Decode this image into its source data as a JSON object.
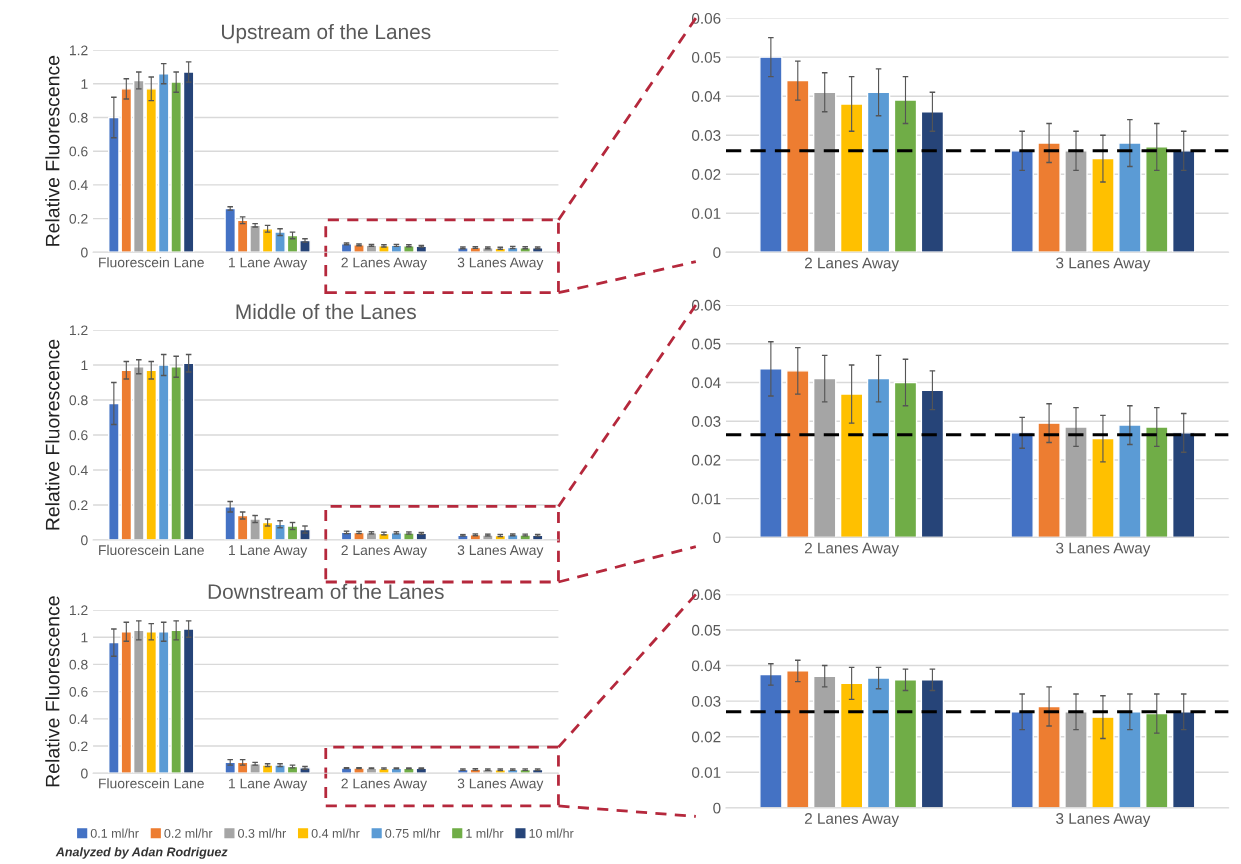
{
  "chart_data": [
    {
      "type": "bar",
      "title": "Upstream of the Lanes",
      "ylabel": "Relative Fluorescence",
      "categories": [
        "Fluorescein Lane",
        "1 Lane Away",
        "2 Lanes Away",
        "3 Lanes Away"
      ],
      "ylim": [
        0,
        1.2
      ],
      "yticks": [
        0,
        0.2,
        0.4,
        0.6,
        0.8,
        1,
        1.2
      ],
      "grid": "y",
      "series": [
        {
          "color": "#4472c4",
          "values": [
            0.8,
            0.26,
            0.05,
            0.026
          ],
          "errors": [
            0.12,
            0.01,
            0.005,
            0.005
          ]
        },
        {
          "color": "#ed7d31",
          "values": [
            0.97,
            0.19,
            0.044,
            0.028
          ],
          "errors": [
            0.06,
            0.02,
            0.005,
            0.005
          ]
        },
        {
          "color": "#a5a5a5",
          "values": [
            1.02,
            0.16,
            0.041,
            0.026
          ],
          "errors": [
            0.05,
            0.01,
            0.005,
            0.005
          ]
        },
        {
          "color": "#ffc000",
          "values": [
            0.97,
            0.14,
            0.038,
            0.024
          ],
          "errors": [
            0.07,
            0.02,
            0.007,
            0.006
          ]
        },
        {
          "color": "#5b9bd5",
          "values": [
            1.06,
            0.12,
            0.041,
            0.028
          ],
          "errors": [
            0.06,
            0.02,
            0.006,
            0.006
          ]
        },
        {
          "color": "#70ad47",
          "values": [
            1.01,
            0.1,
            0.039,
            0.027
          ],
          "errors": [
            0.06,
            0.02,
            0.006,
            0.006
          ]
        },
        {
          "color": "#264478",
          "values": [
            1.07,
            0.07,
            0.036,
            0.026
          ],
          "errors": [
            0.06,
            0.01,
            0.005,
            0.005
          ]
        }
      ]
    },
    {
      "type": "bar",
      "title": "Middle of the Lanes",
      "ylabel": "Relative Fluorescence",
      "categories": [
        "Fluorescein Lane",
        "1 Lane Away",
        "2 Lanes Away",
        "3 Lanes Away"
      ],
      "ylim": [
        0,
        1.2
      ],
      "yticks": [
        0,
        0.2,
        0.4,
        0.6,
        0.8,
        1,
        1.2
      ],
      "grid": "y",
      "series": [
        {
          "color": "#4472c4",
          "values": [
            0.78,
            0.19,
            0.0435,
            0.027
          ],
          "errors": [
            0.12,
            0.03,
            0.007,
            0.004
          ]
        },
        {
          "color": "#ed7d31",
          "values": [
            0.97,
            0.14,
            0.043,
            0.0295
          ],
          "errors": [
            0.05,
            0.02,
            0.006,
            0.005
          ]
        },
        {
          "color": "#a5a5a5",
          "values": [
            0.99,
            0.12,
            0.041,
            0.0285
          ],
          "errors": [
            0.04,
            0.02,
            0.006,
            0.005
          ]
        },
        {
          "color": "#ffc000",
          "values": [
            0.97,
            0.1,
            0.037,
            0.0255
          ],
          "errors": [
            0.05,
            0.02,
            0.0075,
            0.006
          ]
        },
        {
          "color": "#5b9bd5",
          "values": [
            1.0,
            0.09,
            0.041,
            0.029
          ],
          "errors": [
            0.06,
            0.02,
            0.006,
            0.005
          ]
        },
        {
          "color": "#70ad47",
          "values": [
            0.99,
            0.08,
            0.04,
            0.0285
          ],
          "errors": [
            0.06,
            0.02,
            0.006,
            0.005
          ]
        },
        {
          "color": "#264478",
          "values": [
            1.01,
            0.06,
            0.038,
            0.027
          ],
          "errors": [
            0.05,
            0.02,
            0.005,
            0.005
          ]
        }
      ]
    },
    {
      "type": "bar",
      "title": "Downstream of the Lanes",
      "ylabel": "Relative Fluorescence",
      "categories": [
        "Fluorescein Lane",
        "1 Lane Away",
        "2 Lanes Away",
        "3 Lanes Away"
      ],
      "ylim": [
        0,
        1.2
      ],
      "yticks": [
        0,
        0.2,
        0.4,
        0.6,
        0.8,
        1,
        1.2
      ],
      "grid": "y",
      "legend": "bottom",
      "annotations": [
        "Analyzed by Adan Rodriguez"
      ],
      "series": [
        {
          "name": "0.1 ml/hr",
          "color": "#4472c4",
          "values": [
            0.96,
            0.08,
            0.0375,
            0.027
          ],
          "errors": [
            0.1,
            0.02,
            0.003,
            0.005
          ]
        },
        {
          "name": "0.2 ml/hr",
          "color": "#ed7d31",
          "values": [
            1.04,
            0.08,
            0.0385,
            0.0285
          ],
          "errors": [
            0.07,
            0.02,
            0.003,
            0.0055
          ]
        },
        {
          "name": "0.3 ml/hr",
          "color": "#a5a5a5",
          "values": [
            1.05,
            0.07,
            0.037,
            0.027
          ],
          "errors": [
            0.07,
            0.01,
            0.003,
            0.005
          ]
        },
        {
          "name": "0.4 ml/hr",
          "color": "#ffc000",
          "values": [
            1.04,
            0.06,
            0.035,
            0.0255
          ],
          "errors": [
            0.06,
            0.01,
            0.0045,
            0.006
          ]
        },
        {
          "name": "0.75 ml/hr",
          "color": "#5b9bd5",
          "values": [
            1.04,
            0.06,
            0.0365,
            0.027
          ],
          "errors": [
            0.07,
            0.01,
            0.003,
            0.005
          ]
        },
        {
          "name": "1 ml/hr",
          "color": "#70ad47",
          "values": [
            1.05,
            0.05,
            0.036,
            0.0265
          ],
          "errors": [
            0.07,
            0.01,
            0.003,
            0.0055
          ]
        },
        {
          "name": "10 ml/hr",
          "color": "#264478",
          "values": [
            1.06,
            0.04,
            0.036,
            0.027
          ],
          "errors": [
            0.06,
            0.01,
            0.003,
            0.005
          ]
        }
      ]
    },
    {
      "type": "bar",
      "categories": [
        "2 Lanes Away",
        "3 Lanes Away"
      ],
      "ylim": [
        0,
        0.06
      ],
      "yticks": [
        0,
        0.01,
        0.02,
        0.03,
        0.04,
        0.05,
        0.06
      ],
      "grid": "y",
      "ref_lines": [
        {
          "axis": "y",
          "value": 0.026,
          "color": "#000000",
          "line_style": "dashed"
        }
      ],
      "series": [
        {
          "color": "#4472c4",
          "values": [
            0.05,
            0.026
          ],
          "errors": [
            0.005,
            0.005
          ]
        },
        {
          "color": "#ed7d31",
          "values": [
            0.044,
            0.028
          ],
          "errors": [
            0.005,
            0.005
          ]
        },
        {
          "color": "#a5a5a5",
          "values": [
            0.041,
            0.026
          ],
          "errors": [
            0.005,
            0.005
          ]
        },
        {
          "color": "#ffc000",
          "values": [
            0.038,
            0.024
          ],
          "errors": [
            0.007,
            0.006
          ]
        },
        {
          "color": "#5b9bd5",
          "values": [
            0.041,
            0.028
          ],
          "errors": [
            0.006,
            0.006
          ]
        },
        {
          "color": "#70ad47",
          "values": [
            0.039,
            0.027
          ],
          "errors": [
            0.006,
            0.006
          ]
        },
        {
          "color": "#264478",
          "values": [
            0.036,
            0.026
          ],
          "errors": [
            0.005,
            0.005
          ]
        }
      ]
    },
    {
      "type": "bar",
      "categories": [
        "2 Lanes Away",
        "3 Lanes Away"
      ],
      "ylim": [
        0,
        0.06
      ],
      "yticks": [
        0,
        0.01,
        0.02,
        0.03,
        0.04,
        0.05,
        0.06
      ],
      "grid": "y",
      "ref_lines": [
        {
          "axis": "y",
          "value": 0.0265,
          "color": "#000000",
          "line_style": "dashed"
        }
      ],
      "series": [
        {
          "color": "#4472c4",
          "values": [
            0.0435,
            0.027
          ],
          "errors": [
            0.007,
            0.004
          ]
        },
        {
          "color": "#ed7d31",
          "values": [
            0.043,
            0.0295
          ],
          "errors": [
            0.006,
            0.005
          ]
        },
        {
          "color": "#a5a5a5",
          "values": [
            0.041,
            0.0285
          ],
          "errors": [
            0.006,
            0.005
          ]
        },
        {
          "color": "#ffc000",
          "values": [
            0.037,
            0.0255
          ],
          "errors": [
            0.0075,
            0.006
          ]
        },
        {
          "color": "#5b9bd5",
          "values": [
            0.041,
            0.029
          ],
          "errors": [
            0.006,
            0.005
          ]
        },
        {
          "color": "#70ad47",
          "values": [
            0.04,
            0.0285
          ],
          "errors": [
            0.006,
            0.005
          ]
        },
        {
          "color": "#264478",
          "values": [
            0.038,
            0.027
          ],
          "errors": [
            0.005,
            0.005
          ]
        }
      ]
    },
    {
      "type": "bar",
      "categories": [
        "2 Lanes Away",
        "3 Lanes Away"
      ],
      "ylim": [
        0,
        0.06
      ],
      "yticks": [
        0,
        0.01,
        0.02,
        0.03,
        0.04,
        0.05,
        0.06
      ],
      "grid": "y",
      "ref_lines": [
        {
          "axis": "y",
          "value": 0.027,
          "color": "#000000",
          "line_style": "dashed"
        }
      ],
      "series": [
        {
          "color": "#4472c4",
          "values": [
            0.0375,
            0.027
          ],
          "errors": [
            0.003,
            0.005
          ]
        },
        {
          "color": "#ed7d31",
          "values": [
            0.0385,
            0.0285
          ],
          "errors": [
            0.003,
            0.0055
          ]
        },
        {
          "color": "#a5a5a5",
          "values": [
            0.037,
            0.027
          ],
          "errors": [
            0.003,
            0.005
          ]
        },
        {
          "color": "#ffc000",
          "values": [
            0.035,
            0.0255
          ],
          "errors": [
            0.0045,
            0.006
          ]
        },
        {
          "color": "#5b9bd5",
          "values": [
            0.0365,
            0.027
          ],
          "errors": [
            0.003,
            0.005
          ]
        },
        {
          "color": "#70ad47",
          "values": [
            0.036,
            0.0265
          ],
          "errors": [
            0.003,
            0.0055
          ]
        },
        {
          "color": "#264478",
          "values": [
            0.036,
            0.027
          ],
          "errors": [
            0.003,
            0.005
          ]
        }
      ]
    }
  ]
}
